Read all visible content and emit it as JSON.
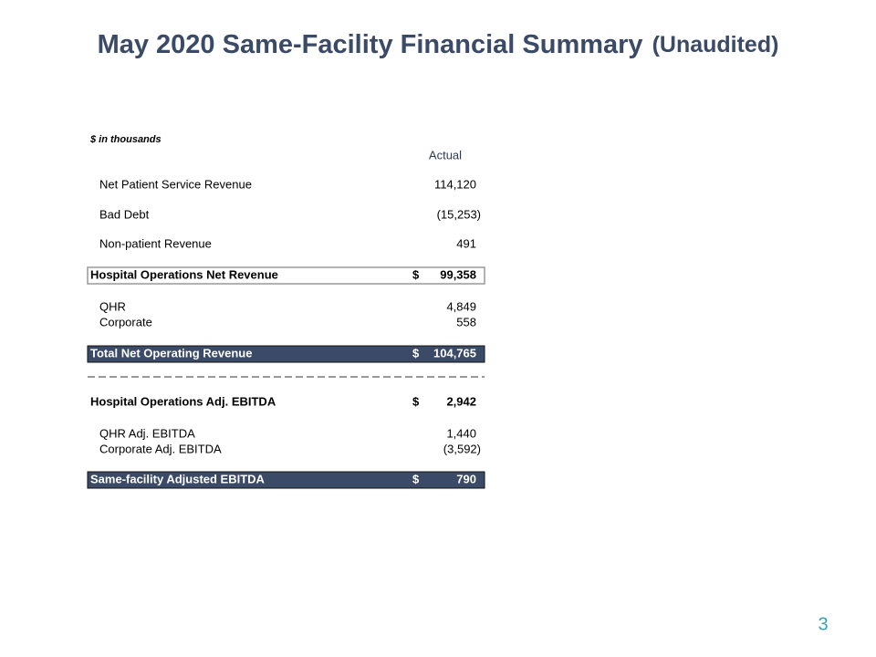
{
  "header": {
    "title": "May 2020 Same-Facility Financial Summary",
    "subtitle": "(Unaudited)"
  },
  "table": {
    "note": "$ in thousands",
    "column": "Actual",
    "rows": [
      {
        "label": "Net Patient Service Revenue",
        "value": "114,120",
        "style": "item"
      },
      {
        "label": "Bad Debt",
        "value": "(15,253)",
        "style": "item"
      },
      {
        "label": "Non-patient Revenue",
        "value": "491",
        "style": "item"
      },
      {
        "label": "Hospital Operations Net Revenue",
        "currency": "$",
        "value": "99,358",
        "style": "subtotal"
      },
      {
        "label": "QHR",
        "value": "4,849",
        "style": "item"
      },
      {
        "label": "Corporate",
        "value": "558",
        "style": "item"
      },
      {
        "label": "Total Net Operating Revenue",
        "currency": "$",
        "value": "104,765",
        "style": "total"
      },
      {
        "label": "Hospital Operations Adj. EBITDA",
        "currency": "$",
        "value": "2,942",
        "style": "bold"
      },
      {
        "label": "QHR Adj. EBITDA",
        "value": "1,440",
        "style": "item"
      },
      {
        "label": "Corporate Adj. EBITDA",
        "value": "(3,592)",
        "style": "item"
      },
      {
        "label": "Same-facility Adjusted EBITDA",
        "currency": "$",
        "value": "790",
        "style": "total"
      }
    ]
  },
  "footer": {
    "page": "3"
  }
}
